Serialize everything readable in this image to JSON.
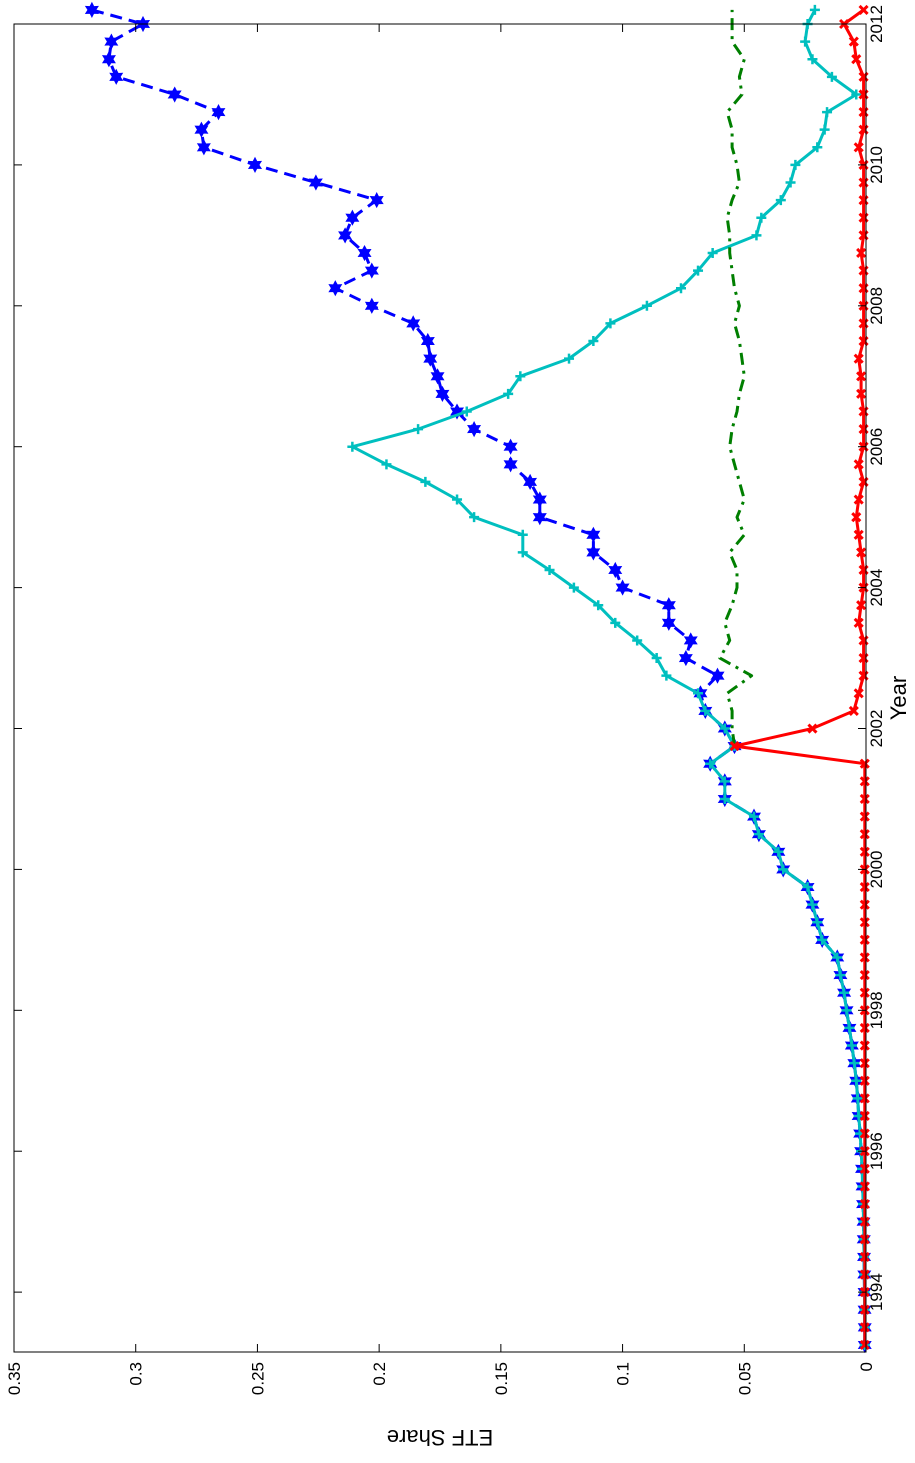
{
  "chart_data": {
    "type": "line",
    "orientation": "rotated-90-clockwise",
    "xlabel": "Year",
    "ylabel": "ETF Share",
    "xlim": [
      1993.15,
      2012
    ],
    "ylim": [
      0,
      0.35
    ],
    "x_ticks": [
      1994,
      1996,
      1998,
      2000,
      2002,
      2004,
      2006,
      2008,
      2010,
      2012
    ],
    "y_ticks": [
      0,
      0.05,
      0.1,
      0.15,
      0.2,
      0.25,
      0.3,
      0.35
    ],
    "y_tick_labels": [
      "0",
      "0.05",
      "0.1",
      "0.15",
      "0.2",
      "0.25",
      "0.3",
      "0.35"
    ],
    "grid": false,
    "series": [
      {
        "color": "#0000ff",
        "style": "dashed",
        "marker": "hexagram",
        "points": [
          [
            1993.25,
            0.0005
          ],
          [
            1993.5,
            0.0005
          ],
          [
            1993.75,
            0.0006
          ],
          [
            1994,
            0.0006
          ],
          [
            1994.25,
            0.0007
          ],
          [
            1994.5,
            0.0008
          ],
          [
            1994.75,
            0.0009
          ],
          [
            1995,
            0.001
          ],
          [
            1995.25,
            0.0012
          ],
          [
            1995.5,
            0.0014
          ],
          [
            1995.75,
            0.0016
          ],
          [
            1996,
            0.002
          ],
          [
            1996.25,
            0.0024
          ],
          [
            1996.5,
            0.003
          ],
          [
            1996.75,
            0.0034
          ],
          [
            1997,
            0.004
          ],
          [
            1997.25,
            0.0048
          ],
          [
            1997.5,
            0.0058
          ],
          [
            1997.75,
            0.0068
          ],
          [
            1998,
            0.008
          ],
          [
            1998.25,
            0.009
          ],
          [
            1998.5,
            0.0105
          ],
          [
            1998.75,
            0.0118
          ],
          [
            1999,
            0.018
          ],
          [
            1999.25,
            0.02
          ],
          [
            1999.5,
            0.022
          ],
          [
            1999.75,
            0.024
          ],
          [
            2000,
            0.034
          ],
          [
            2000.25,
            0.036
          ],
          [
            2000.5,
            0.044
          ],
          [
            2000.75,
            0.046
          ],
          [
            2001,
            0.058
          ],
          [
            2001.25,
            0.058
          ],
          [
            2001.5,
            0.064
          ],
          [
            2001.75,
            0.054
          ],
          [
            2002,
            0.058
          ],
          [
            2002.25,
            0.066
          ],
          [
            2002.5,
            0.068
          ],
          [
            2002.75,
            0.061
          ],
          [
            2003,
            0.074
          ],
          [
            2003.25,
            0.072
          ],
          [
            2003.5,
            0.081
          ],
          [
            2003.75,
            0.081
          ],
          [
            2004,
            0.1
          ],
          [
            2004.25,
            0.103
          ],
          [
            2004.5,
            0.112
          ],
          [
            2004.75,
            0.112
          ],
          [
            2005,
            0.134
          ],
          [
            2005.25,
            0.134
          ],
          [
            2005.5,
            0.138
          ],
          [
            2005.75,
            0.146
          ],
          [
            2006,
            0.146
          ],
          [
            2006.25,
            0.161
          ],
          [
            2006.5,
            0.168
          ],
          [
            2006.75,
            0.174
          ],
          [
            2007,
            0.176
          ],
          [
            2007.25,
            0.179
          ],
          [
            2007.5,
            0.18
          ],
          [
            2007.75,
            0.186
          ],
          [
            2008,
            0.203
          ],
          [
            2008.25,
            0.218
          ],
          [
            2008.5,
            0.203
          ],
          [
            2008.75,
            0.206
          ],
          [
            2009,
            0.214
          ],
          [
            2009.25,
            0.211
          ],
          [
            2009.5,
            0.201
          ],
          [
            2009.75,
            0.226
          ],
          [
            2010,
            0.251
          ],
          [
            2010.25,
            0.272
          ],
          [
            2010.5,
            0.273
          ],
          [
            2010.75,
            0.266
          ],
          [
            2011,
            0.284
          ],
          [
            2011.25,
            0.308
          ],
          [
            2011.5,
            0.311
          ],
          [
            2011.75,
            0.31
          ],
          [
            2012,
            0.297
          ],
          [
            2012.2,
            0.318
          ]
        ]
      },
      {
        "color": "#00bfbf",
        "style": "solid",
        "marker": "plus",
        "points": [
          [
            1993.25,
            0.0005
          ],
          [
            1993.5,
            0.0005
          ],
          [
            1993.75,
            0.0006
          ],
          [
            1994,
            0.0006
          ],
          [
            1994.25,
            0.0007
          ],
          [
            1994.5,
            0.0008
          ],
          [
            1994.75,
            0.0009
          ],
          [
            1995,
            0.001
          ],
          [
            1995.25,
            0.0012
          ],
          [
            1995.5,
            0.0014
          ],
          [
            1995.75,
            0.0016
          ],
          [
            1996,
            0.002
          ],
          [
            1996.25,
            0.0024
          ],
          [
            1996.5,
            0.003
          ],
          [
            1996.75,
            0.0034
          ],
          [
            1997,
            0.004
          ],
          [
            1997.25,
            0.0048
          ],
          [
            1997.5,
            0.0058
          ],
          [
            1997.75,
            0.0068
          ],
          [
            1998,
            0.008
          ],
          [
            1998.25,
            0.009
          ],
          [
            1998.5,
            0.0105
          ],
          [
            1998.75,
            0.0118
          ],
          [
            1999,
            0.018
          ],
          [
            1999.25,
            0.02
          ],
          [
            1999.5,
            0.022
          ],
          [
            1999.75,
            0.024
          ],
          [
            2000,
            0.034
          ],
          [
            2000.25,
            0.036
          ],
          [
            2000.5,
            0.044
          ],
          [
            2000.75,
            0.046
          ],
          [
            2001,
            0.058
          ],
          [
            2001.25,
            0.058
          ],
          [
            2001.5,
            0.064
          ],
          [
            2001.75,
            0.054
          ],
          [
            2002,
            0.058
          ],
          [
            2002.25,
            0.066
          ],
          [
            2002.5,
            0.069
          ],
          [
            2002.75,
            0.082
          ],
          [
            2003,
            0.086
          ],
          [
            2003.25,
            0.094
          ],
          [
            2003.5,
            0.103
          ],
          [
            2003.75,
            0.11
          ],
          [
            2004,
            0.12
          ],
          [
            2004.25,
            0.13
          ],
          [
            2004.5,
            0.141
          ],
          [
            2004.75,
            0.141
          ],
          [
            2005,
            0.161
          ],
          [
            2005.25,
            0.168
          ],
          [
            2005.5,
            0.181
          ],
          [
            2005.75,
            0.197
          ],
          [
            2006,
            0.211
          ],
          [
            2006.25,
            0.184
          ],
          [
            2006.5,
            0.164
          ],
          [
            2006.75,
            0.147
          ],
          [
            2007,
            0.142
          ],
          [
            2007.25,
            0.122
          ],
          [
            2007.5,
            0.112
          ],
          [
            2007.75,
            0.105
          ],
          [
            2008,
            0.09
          ],
          [
            2008.25,
            0.076
          ],
          [
            2008.5,
            0.069
          ],
          [
            2008.75,
            0.063
          ],
          [
            2009,
            0.045
          ],
          [
            2009.25,
            0.043
          ],
          [
            2009.5,
            0.035
          ],
          [
            2009.75,
            0.031
          ],
          [
            2010,
            0.029
          ],
          [
            2010.25,
            0.02
          ],
          [
            2010.5,
            0.017
          ],
          [
            2010.75,
            0.016
          ],
          [
            2011,
            0.004
          ],
          [
            2011.25,
            0.014
          ],
          [
            2011.5,
            0.022
          ],
          [
            2011.75,
            0.025
          ],
          [
            2012,
            0.024
          ],
          [
            2012.2,
            0.021
          ]
        ]
      },
      {
        "color": "#007f00",
        "style": "dash-dot",
        "marker": "none",
        "points": [
          [
            2001.75,
            0.054
          ],
          [
            2002,
            0.055
          ],
          [
            2002.25,
            0.055
          ],
          [
            2002.5,
            0.057
          ],
          [
            2002.75,
            0.047
          ],
          [
            2003,
            0.06
          ],
          [
            2003.25,
            0.056
          ],
          [
            2003.5,
            0.058
          ],
          [
            2003.75,
            0.055
          ],
          [
            2004,
            0.053
          ],
          [
            2004.25,
            0.053
          ],
          [
            2004.5,
            0.056
          ],
          [
            2004.75,
            0.05
          ],
          [
            2005,
            0.053
          ],
          [
            2005.25,
            0.05
          ],
          [
            2005.5,
            0.052
          ],
          [
            2005.75,
            0.054
          ],
          [
            2006,
            0.056
          ],
          [
            2006.25,
            0.055
          ],
          [
            2006.5,
            0.053
          ],
          [
            2006.75,
            0.052
          ],
          [
            2007,
            0.05
          ],
          [
            2007.25,
            0.051
          ],
          [
            2007.5,
            0.052
          ],
          [
            2007.75,
            0.054
          ],
          [
            2008,
            0.052
          ],
          [
            2008.25,
            0.054
          ],
          [
            2008.5,
            0.055
          ],
          [
            2008.75,
            0.056
          ],
          [
            2009,
            0.056
          ],
          [
            2009.25,
            0.057
          ],
          [
            2009.5,
            0.055
          ],
          [
            2009.75,
            0.052
          ],
          [
            2010,
            0.053
          ],
          [
            2010.25,
            0.055
          ],
          [
            2010.5,
            0.055
          ],
          [
            2010.75,
            0.057
          ],
          [
            2011,
            0.051
          ],
          [
            2011.25,
            0.052
          ],
          [
            2011.5,
            0.05
          ],
          [
            2011.75,
            0.055
          ],
          [
            2012,
            0.055
          ],
          [
            2012.2,
            0.055
          ]
        ]
      },
      {
        "color": "#ff0000",
        "style": "solid",
        "marker": "x",
        "points": [
          [
            1993.25,
            0.0005
          ],
          [
            1993.5,
            0.0005
          ],
          [
            1993.75,
            0.0005
          ],
          [
            1994,
            0.0005
          ],
          [
            1994.25,
            0.0005
          ],
          [
            1994.5,
            0.0005
          ],
          [
            1994.75,
            0.0005
          ],
          [
            1995,
            0.0005
          ],
          [
            1995.25,
            0.0005
          ],
          [
            1995.5,
            0.0005
          ],
          [
            1995.75,
            0.0005
          ],
          [
            1996,
            0.0005
          ],
          [
            1996.25,
            0.0005
          ],
          [
            1996.5,
            0.0005
          ],
          [
            1996.75,
            0.0005
          ],
          [
            1997,
            0.0005
          ],
          [
            1997.25,
            0.0005
          ],
          [
            1997.5,
            0.0005
          ],
          [
            1997.75,
            0.0005
          ],
          [
            1998,
            0.0005
          ],
          [
            1998.25,
            0.0005
          ],
          [
            1998.5,
            0.0005
          ],
          [
            1998.75,
            0.0005
          ],
          [
            1999,
            0.0005
          ],
          [
            1999.25,
            0.0005
          ],
          [
            1999.5,
            0.0005
          ],
          [
            1999.75,
            0.0005
          ],
          [
            2000,
            0.0005
          ],
          [
            2000.25,
            0.0005
          ],
          [
            2000.5,
            0.0005
          ],
          [
            2000.75,
            0.0005
          ],
          [
            2001,
            0.0005
          ],
          [
            2001.25,
            0.0005
          ],
          [
            2001.5,
            0.0005
          ],
          [
            2001.75,
            0.054
          ],
          [
            2002,
            0.022
          ],
          [
            2002.25,
            0.005
          ],
          [
            2002.5,
            0.003
          ],
          [
            2002.75,
            0.001
          ],
          [
            2003,
            0.001
          ],
          [
            2003.25,
            0.001
          ],
          [
            2003.5,
            0.003
          ],
          [
            2003.75,
            0.002
          ],
          [
            2004,
            0.001
          ],
          [
            2004.25,
            0.001
          ],
          [
            2004.5,
            0.002
          ],
          [
            2004.75,
            0.003
          ],
          [
            2005,
            0.004
          ],
          [
            2005.25,
            0.003
          ],
          [
            2005.5,
            0.001
          ],
          [
            2005.75,
            0.003
          ],
          [
            2006,
            0.001
          ],
          [
            2006.25,
            0.001
          ],
          [
            2006.5,
            0.001
          ],
          [
            2006.75,
            0.002
          ],
          [
            2007,
            0.002
          ],
          [
            2007.25,
            0.003
          ],
          [
            2007.5,
            0.001
          ],
          [
            2007.75,
            0.001
          ],
          [
            2008,
            0.001
          ],
          [
            2008.25,
            0.001
          ],
          [
            2008.5,
            0.001
          ],
          [
            2008.75,
            0.002
          ],
          [
            2009,
            0.001
          ],
          [
            2009.25,
            0.001
          ],
          [
            2009.5,
            0.001
          ],
          [
            2009.75,
            0.001
          ],
          [
            2010,
            0.001
          ],
          [
            2010.25,
            0.003
          ],
          [
            2010.5,
            0.001
          ],
          [
            2010.75,
            0.001
          ],
          [
            2011,
            0.001
          ],
          [
            2011.25,
            0.001
          ],
          [
            2011.5,
            0.004
          ],
          [
            2011.75,
            0.005
          ],
          [
            2012,
            0.009
          ],
          [
            2012.2,
            0.001
          ]
        ]
      }
    ]
  }
}
